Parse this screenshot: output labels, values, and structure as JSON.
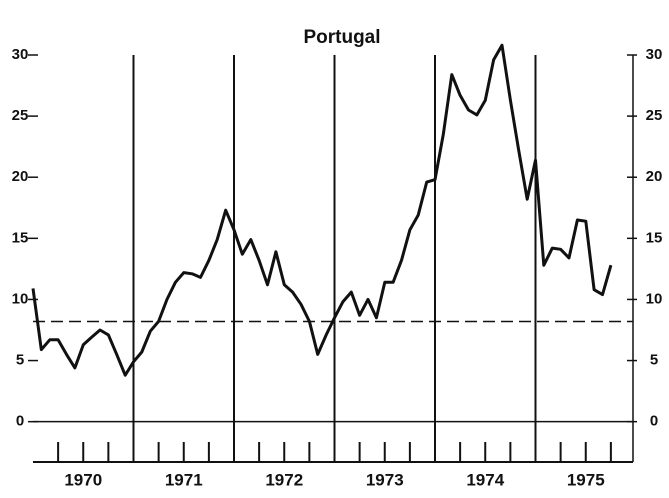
{
  "chart_data": {
    "type": "line",
    "title": "Portugal",
    "series": [
      {
        "color": "#111111",
        "x": [
          1970,
          1970.083,
          1970.167,
          1970.25,
          1970.333,
          1970.417,
          1970.5,
          1970.583,
          1970.667,
          1970.75,
          1970.833,
          1970.917,
          1971,
          1971.083,
          1971.167,
          1971.25,
          1971.333,
          1971.417,
          1971.5,
          1971.583,
          1971.667,
          1971.75,
          1971.833,
          1971.917,
          1972,
          1972.083,
          1972.167,
          1972.25,
          1972.333,
          1972.417,
          1972.5,
          1972.583,
          1972.667,
          1972.75,
          1972.833,
          1972.917,
          1973,
          1973.083,
          1973.167,
          1973.25,
          1973.333,
          1973.417,
          1973.5,
          1973.583,
          1973.667,
          1973.75,
          1973.833,
          1973.917,
          1974,
          1974.083,
          1974.167,
          1974.25,
          1974.333,
          1974.417,
          1974.5,
          1974.583,
          1974.667,
          1974.75,
          1974.833,
          1974.917,
          1975,
          1975.083,
          1975.167,
          1975.25,
          1975.333,
          1975.417,
          1975.5,
          1975.583,
          1975.667,
          1975.75
        ],
        "values": [
          10.9,
          5.9,
          6.7,
          6.7,
          5.5,
          4.4,
          6.3,
          6.9,
          7.5,
          7.1,
          5.5,
          3.8,
          4.9,
          5.7,
          7.4,
          8.2,
          10.0,
          11.4,
          12.2,
          12.1,
          11.8,
          13.2,
          14.9,
          17.3,
          15.7,
          13.7,
          14.9,
          13.2,
          11.2,
          13.9,
          11.2,
          10.6,
          9.6,
          8.2,
          5.5,
          7.1,
          8.5,
          9.8,
          10.6,
          8.7,
          10.0,
          8.5,
          11.4,
          11.4,
          13.2,
          15.7,
          16.9,
          19.6,
          19.8,
          23.5,
          28.4,
          26.7,
          25.5,
          25.1,
          26.3,
          29.6,
          30.8,
          26.3,
          22.2,
          18.2,
          21.4,
          12.8,
          14.2,
          14.1,
          13.4,
          16.5,
          16.4,
          10.8,
          10.4,
          12.8
        ]
      }
    ],
    "reference_line": 8.2,
    "xlim": [
      1970,
      1976
    ],
    "xticks": [
      {
        "value": 1970.5,
        "label": "1970"
      },
      {
        "value": 1971.5,
        "label": "1971"
      },
      {
        "value": 1972.5,
        "label": "1972"
      },
      {
        "value": 1973.5,
        "label": "1973"
      },
      {
        "value": 1974.5,
        "label": "1974"
      },
      {
        "value": 1975.5,
        "label": "1975"
      }
    ],
    "year_lines": [
      1971,
      1972,
      1973,
      1974,
      1975
    ],
    "minor_xticks": [
      1970.25,
      1970.5,
      1970.75,
      1971.25,
      1971.5,
      1971.75,
      1972.25,
      1972.5,
      1972.75,
      1973.25,
      1973.5,
      1973.75,
      1974.25,
      1974.5,
      1974.75,
      1975.25,
      1975.5,
      1975.75
    ],
    "ylim": [
      -3.3,
      30
    ],
    "yticks": [
      0,
      5,
      10,
      15,
      20,
      25,
      30
    ]
  }
}
